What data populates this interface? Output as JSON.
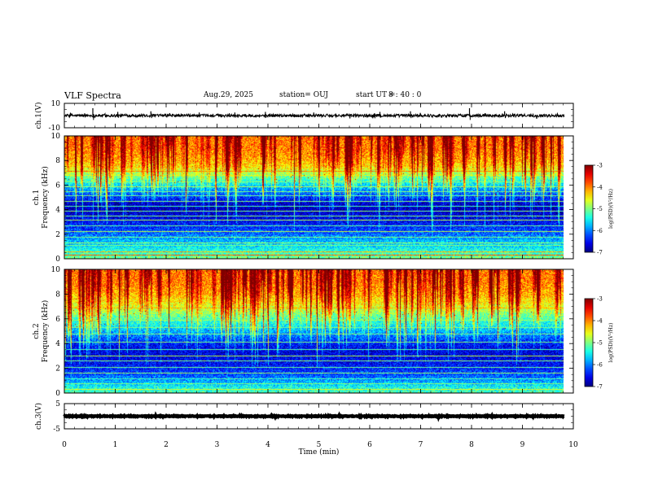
{
  "header": {
    "title": "VLF Spectra",
    "date": "Aug.29, 2025",
    "station": "station= OUJ",
    "start_label": "start  UT  =",
    "start_value": "8  : 40 : 0"
  },
  "chart_data": [
    {
      "type": "line",
      "panel": "ch1-waveform",
      "ylabel": "ch.1(V)",
      "ylim": [
        -10,
        10
      ],
      "yticks": [
        "10",
        "-10"
      ],
      "xlim": [
        0,
        10
      ],
      "baseline": 0,
      "noise_amplitude": 1.2,
      "line_color": "#000000",
      "spikes": [
        {
          "t": 0.56,
          "v": 6
        },
        {
          "t": 1.05,
          "v": 3
        },
        {
          "t": 1.7,
          "v": 3.5
        },
        {
          "t": 2.65,
          "v": 2.5
        },
        {
          "t": 3.35,
          "v": 2.5
        },
        {
          "t": 3.95,
          "v": 3
        },
        {
          "t": 4.9,
          "v": 2.5
        },
        {
          "t": 6.2,
          "v": 3
        },
        {
          "t": 6.8,
          "v": 3.5
        },
        {
          "t": 7.96,
          "v": 6
        },
        {
          "t": 8.65,
          "v": 3.5
        }
      ]
    },
    {
      "type": "heatmap",
      "panel": "ch1-spectrogram",
      "ylabel_line1": "ch.1",
      "ylabel_line2": "Frequency  (kHz)",
      "ylim": [
        0,
        10
      ],
      "yticks": [
        0,
        2,
        4,
        6,
        8,
        10
      ],
      "xlim": [
        0,
        10
      ],
      "data_end_min": 9.8,
      "colorbar": {
        "label": "log(PSD)(V²/Hz)",
        "min": -7,
        "max": -3,
        "ticks": [
          "-3",
          "-4",
          "-5",
          "-6",
          "-7"
        ]
      },
      "profile": [
        {
          "f": 0,
          "v": -5.0
        },
        {
          "f": 0.5,
          "v": -5.3
        },
        {
          "f": 1.0,
          "v": -5.6
        },
        {
          "f": 1.5,
          "v": -5.8
        },
        {
          "f": 2.0,
          "v": -6.1
        },
        {
          "f": 2.5,
          "v": -6.3
        },
        {
          "f": 3.0,
          "v": -6.5
        },
        {
          "f": 3.5,
          "v": -6.6
        },
        {
          "f": 4.0,
          "v": -6.8
        },
        {
          "f": 4.5,
          "v": -6.7
        },
        {
          "f": 5.0,
          "v": -6.3
        },
        {
          "f": 5.5,
          "v": -6.0
        },
        {
          "f": 6.0,
          "v": -5.6
        },
        {
          "f": 6.5,
          "v": -5.2
        },
        {
          "f": 7.0,
          "v": -4.8
        },
        {
          "f": 7.5,
          "v": -4.4
        },
        {
          "f": 8.0,
          "v": -4.2
        },
        {
          "f": 9.0,
          "v": -4.0
        },
        {
          "f": 10.0,
          "v": -4.0
        }
      ],
      "lines": [
        {
          "f": 0.3,
          "v": -3.8
        },
        {
          "f": 0.55,
          "v": -4.2
        },
        {
          "f": 1.1,
          "v": -5.0
        },
        {
          "f": 1.3,
          "v": -4.9
        },
        {
          "f": 1.75,
          "v": -5.0
        },
        {
          "f": 2.2,
          "v": -4.8
        },
        {
          "f": 2.7,
          "v": -5.1
        },
        {
          "f": 3.15,
          "v": -4.8
        },
        {
          "f": 3.45,
          "v": -5.0
        },
        {
          "f": 3.85,
          "v": -5.0
        },
        {
          "f": 4.3,
          "v": -5.2
        },
        {
          "f": 4.65,
          "v": -5.0
        },
        {
          "f": 5.15,
          "v": -5.1
        },
        {
          "f": 5.45,
          "v": -5.0
        },
        {
          "f": 5.85,
          "v": -4.8
        },
        {
          "f": 6.25,
          "v": -5.0
        },
        {
          "f": 6.8,
          "v": -4.6
        },
        {
          "f": 7.15,
          "v": -4.0
        }
      ],
      "burst_density": 1.0
    },
    {
      "type": "heatmap",
      "panel": "ch2-spectrogram",
      "ylabel_line1": "ch.2",
      "ylabel_line2": "Frequency  (kHz)",
      "ylim": [
        0,
        10
      ],
      "yticks": [
        0,
        2,
        4,
        6,
        8,
        10
      ],
      "xlim": [
        0,
        10
      ],
      "data_end_min": 9.8,
      "colorbar": {
        "label": "log(PSD)(V²/Hz)",
        "min": -7,
        "max": -3,
        "ticks": [
          "-3",
          "-4",
          "-5",
          "-6",
          "-7"
        ]
      },
      "profile": [
        {
          "f": 0,
          "v": -5.2
        },
        {
          "f": 0.5,
          "v": -5.5
        },
        {
          "f": 1.0,
          "v": -5.9
        },
        {
          "f": 1.5,
          "v": -6.2
        },
        {
          "f": 2.0,
          "v": -6.4
        },
        {
          "f": 2.5,
          "v": -6.5
        },
        {
          "f": 3.0,
          "v": -6.6
        },
        {
          "f": 3.5,
          "v": -6.6
        },
        {
          "f": 4.0,
          "v": -6.4
        },
        {
          "f": 4.5,
          "v": -6.1
        },
        {
          "f": 5.0,
          "v": -5.8
        },
        {
          "f": 5.5,
          "v": -5.5
        },
        {
          "f": 6.0,
          "v": -5.2
        },
        {
          "f": 6.5,
          "v": -4.9
        },
        {
          "f": 7.0,
          "v": -4.6
        },
        {
          "f": 7.5,
          "v": -4.4
        },
        {
          "f": 8.0,
          "v": -4.2
        },
        {
          "f": 9.0,
          "v": -4.0
        },
        {
          "f": 10.0,
          "v": -4.0
        }
      ],
      "lines": [
        {
          "f": 0.25,
          "v": -4.6
        },
        {
          "f": 0.7,
          "v": -5.0
        },
        {
          "f": 1.15,
          "v": -5.2
        },
        {
          "f": 1.6,
          "v": -4.9
        },
        {
          "f": 2.05,
          "v": -5.1
        },
        {
          "f": 2.55,
          "v": -5.0
        },
        {
          "f": 2.95,
          "v": -4.8
        },
        {
          "f": 3.5,
          "v": -5.2
        },
        {
          "f": 4.1,
          "v": -5.0
        },
        {
          "f": 4.75,
          "v": -5.0
        },
        {
          "f": 5.3,
          "v": -5.0
        },
        {
          "f": 5.9,
          "v": -4.9
        },
        {
          "f": 6.9,
          "v": -4.2
        },
        {
          "f": 7.4,
          "v": -4.5
        }
      ],
      "burst_density": 1.2
    },
    {
      "type": "line",
      "panel": "ch3-waveform",
      "ylabel": "ch.3(V)",
      "ylim": [
        -5,
        5
      ],
      "yticks": [
        "5",
        "-5"
      ],
      "xlim": [
        0,
        10
      ],
      "xlabel": "Time  (min)",
      "xticks": [
        0,
        1,
        2,
        3,
        4,
        5,
        6,
        7,
        8,
        9,
        10
      ],
      "baseline": 0,
      "noise_amplitude": 0.15,
      "line_color": "#000000",
      "spikes": []
    }
  ]
}
